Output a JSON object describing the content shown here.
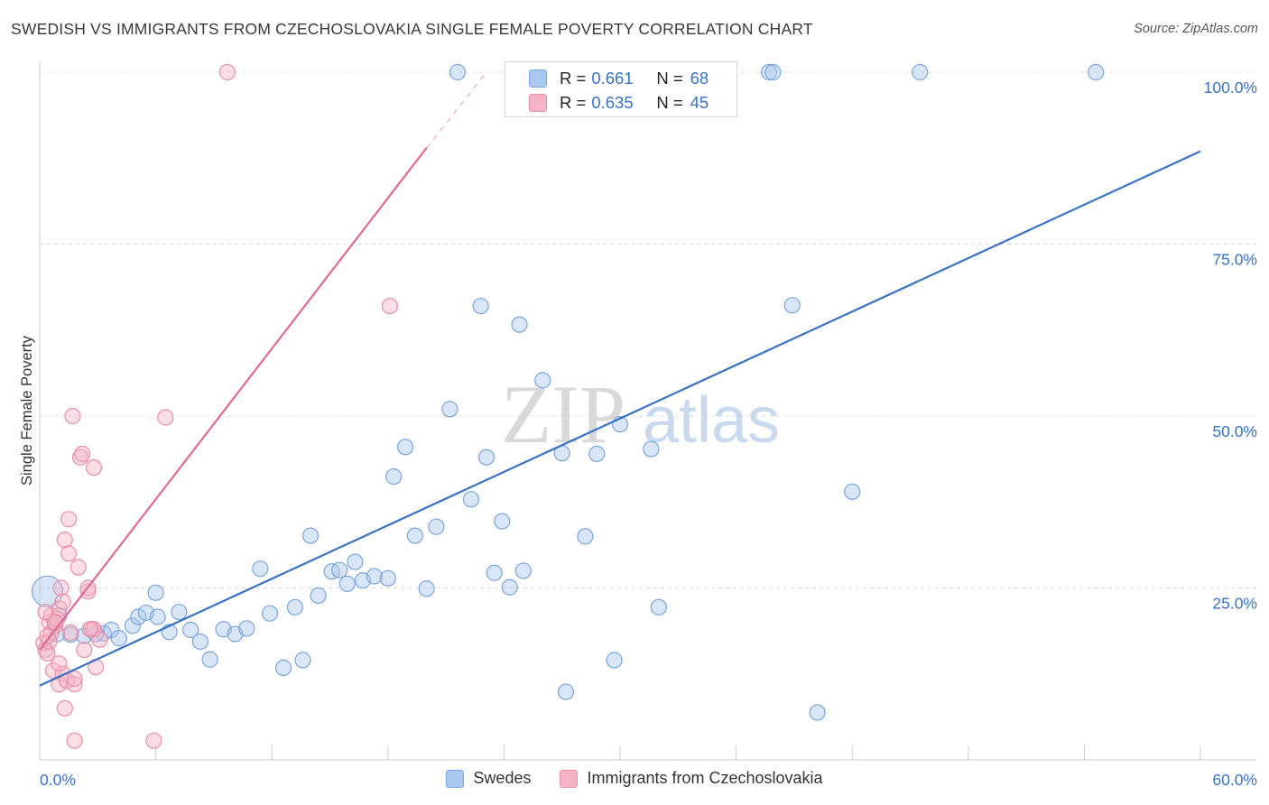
{
  "header": {
    "title": "SWEDISH VS IMMIGRANTS FROM CZECHOSLOVAKIA SINGLE FEMALE POVERTY CORRELATION CHART",
    "source": "Source: ZipAtlas.com"
  },
  "watermark": {
    "zip": "ZIP",
    "atlas": "atlas"
  },
  "stats_legend": {
    "rows": [
      {
        "r_label": "R =",
        "r_value": "0.661",
        "n_label": "N =",
        "n_value": "68",
        "color": "#a9c7ef"
      },
      {
        "r_label": "R =",
        "r_value": "0.635",
        "n_label": "N =",
        "n_value": "45",
        "color": "#f4b3c6"
      }
    ]
  },
  "chart_data": {
    "type": "scatter",
    "title": "SWEDISH VS IMMIGRANTS FROM CZECHOSLOVAKIA SINGLE FEMALE POVERTY CORRELATION CHART",
    "xlabel": "",
    "ylabel": "Single Female Poverty",
    "xlim": [
      0,
      60
    ],
    "ylim": [
      0,
      100
    ],
    "x_tick_labels": [
      "0.0%",
      "60.0%"
    ],
    "y_tick_labels": [
      "25.0%",
      "50.0%",
      "75.0%",
      "100.0%"
    ],
    "y_ticks": [
      25,
      50,
      75,
      100
    ],
    "grid": true,
    "legend_position": "bottom",
    "series": [
      {
        "name": "Swedes",
        "color": "#a9c7ef",
        "stroke": "#7aa5dd",
        "trend_color": "#3a72c4",
        "trend": {
          "x0": 0,
          "y0": 10.8,
          "x1": 60,
          "y1": 88.5,
          "dash_to": null
        },
        "points": [
          [
            0.4,
            24.5,
            20
          ],
          [
            1.0,
            21.0,
            10
          ],
          [
            1.6,
            18.2,
            10
          ],
          [
            2.3,
            18.0,
            10
          ],
          [
            3.3,
            18.4,
            10
          ],
          [
            3.7,
            18.9,
            10
          ],
          [
            4.1,
            17.7,
            10
          ],
          [
            4.8,
            19.5,
            10
          ],
          [
            5.1,
            20.8,
            10
          ],
          [
            5.5,
            21.4,
            10
          ],
          [
            6.0,
            24.3,
            10
          ],
          [
            6.1,
            20.8,
            10
          ],
          [
            6.7,
            18.6,
            10
          ],
          [
            7.2,
            21.5,
            10
          ],
          [
            7.8,
            18.9,
            10
          ],
          [
            8.3,
            17.2,
            10
          ],
          [
            8.8,
            14.6,
            10
          ],
          [
            9.5,
            19.0,
            10
          ],
          [
            10.1,
            18.3,
            10
          ],
          [
            10.7,
            19.1,
            10
          ],
          [
            11.4,
            27.8,
            10
          ],
          [
            11.9,
            21.3,
            10
          ],
          [
            12.6,
            13.4,
            10
          ],
          [
            13.2,
            22.2,
            10
          ],
          [
            13.6,
            14.5,
            10
          ],
          [
            14.0,
            32.6,
            10
          ],
          [
            14.4,
            23.9,
            10
          ],
          [
            15.1,
            27.4,
            10
          ],
          [
            15.5,
            27.6,
            10
          ],
          [
            15.9,
            25.6,
            10
          ],
          [
            16.3,
            28.8,
            10
          ],
          [
            16.7,
            26.1,
            10
          ],
          [
            17.3,
            26.7,
            10
          ],
          [
            18.0,
            26.4,
            10
          ],
          [
            18.3,
            41.2,
            10
          ],
          [
            18.9,
            45.5,
            10
          ],
          [
            19.4,
            32.6,
            10
          ],
          [
            20.0,
            24.9,
            10
          ],
          [
            20.5,
            33.9,
            10
          ],
          [
            21.2,
            51.0,
            10
          ],
          [
            21.6,
            100.0,
            10
          ],
          [
            22.3,
            37.9,
            10
          ],
          [
            22.8,
            66.0,
            10
          ],
          [
            23.1,
            44.0,
            10
          ],
          [
            23.5,
            27.2,
            10
          ],
          [
            23.9,
            34.7,
            10
          ],
          [
            24.3,
            25.1,
            10
          ],
          [
            24.8,
            63.3,
            10
          ],
          [
            25.0,
            27.5,
            10
          ],
          [
            26.0,
            55.2,
            10
          ],
          [
            27.0,
            44.6,
            10
          ],
          [
            27.2,
            9.9,
            10
          ],
          [
            28.2,
            32.5,
            10
          ],
          [
            28.8,
            44.5,
            10
          ],
          [
            29.7,
            14.5,
            10
          ],
          [
            30.0,
            48.8,
            10
          ],
          [
            31.2,
            100.0,
            10
          ],
          [
            31.6,
            45.2,
            10
          ],
          [
            32.0,
            22.2,
            10
          ],
          [
            37.7,
            100.0,
            10
          ],
          [
            37.9,
            100.0,
            10
          ],
          [
            38.9,
            66.1,
            10
          ],
          [
            40.2,
            6.9,
            10
          ],
          [
            42.0,
            39.0,
            10
          ],
          [
            45.5,
            100.0,
            10
          ],
          [
            54.6,
            100.0,
            10
          ],
          [
            0.9,
            18.3,
            10
          ],
          [
            2.9,
            18.3,
            10
          ]
        ]
      },
      {
        "name": "Immigrants from Czechoslovakia",
        "color": "#f4b3c6",
        "stroke": "#e890aa",
        "trend_color": "#e06a93",
        "trend": {
          "x0": 0,
          "y0": 16.0,
          "x1": 20.0,
          "y1": 89.0,
          "dash_to": [
            23.1,
            100.0
          ]
        },
        "points": [
          [
            0.2,
            17.0,
            10
          ],
          [
            0.3,
            16.0,
            10
          ],
          [
            0.4,
            15.5,
            10
          ],
          [
            0.5,
            17.2,
            10
          ],
          [
            0.5,
            20.0,
            10
          ],
          [
            0.6,
            21.0,
            10
          ],
          [
            0.7,
            13.0,
            10
          ],
          [
            0.8,
            19.5,
            10
          ],
          [
            0.9,
            20.5,
            10
          ],
          [
            1.0,
            11.0,
            10
          ],
          [
            1.0,
            22.0,
            10
          ],
          [
            1.1,
            25.0,
            10
          ],
          [
            1.2,
            12.5,
            10
          ],
          [
            1.2,
            23.0,
            10
          ],
          [
            1.3,
            32.0,
            10
          ],
          [
            1.3,
            7.5,
            10
          ],
          [
            1.4,
            11.5,
            10
          ],
          [
            1.5,
            30.0,
            10
          ],
          [
            1.5,
            35.0,
            10
          ],
          [
            1.6,
            18.5,
            10
          ],
          [
            1.8,
            11.0,
            10
          ],
          [
            1.8,
            11.8,
            10
          ],
          [
            1.7,
            50.0,
            10
          ],
          [
            1.8,
            2.8,
            10
          ],
          [
            2.0,
            28.0,
            10
          ],
          [
            2.1,
            44.0,
            10
          ],
          [
            2.2,
            44.5,
            10
          ],
          [
            2.3,
            16.0,
            10
          ],
          [
            2.5,
            24.5,
            10
          ],
          [
            2.5,
            25.0,
            10
          ],
          [
            2.7,
            19.0,
            10
          ],
          [
            2.8,
            42.5,
            10
          ],
          [
            2.8,
            19.0,
            10
          ],
          [
            2.9,
            13.5,
            10
          ],
          [
            3.1,
            17.5,
            10
          ],
          [
            5.9,
            2.8,
            10
          ],
          [
            6.5,
            49.8,
            10
          ],
          [
            9.7,
            100.0,
            10
          ],
          [
            18.1,
            66.0,
            10
          ],
          [
            0.3,
            21.5,
            10
          ],
          [
            0.6,
            18.5,
            10
          ],
          [
            0.8,
            20.0,
            10
          ],
          [
            0.4,
            18.0,
            10
          ],
          [
            1.0,
            14.0,
            10
          ],
          [
            2.6,
            19.0,
            10
          ]
        ]
      }
    ]
  }
}
